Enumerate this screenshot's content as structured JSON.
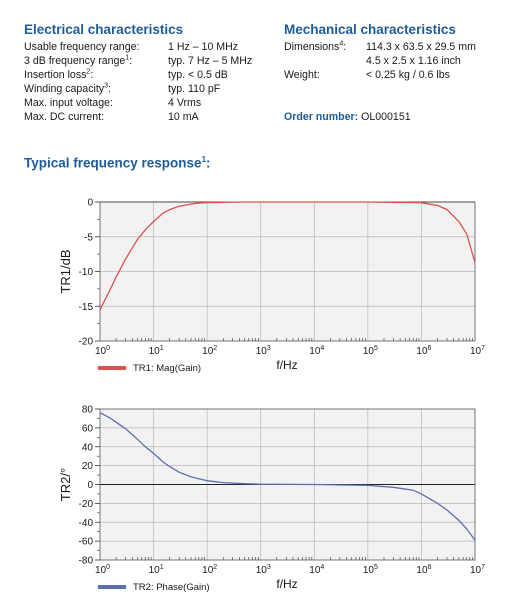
{
  "electrical": {
    "title": "Electrical characteristics",
    "rows": [
      {
        "label": "Usable frequency range:",
        "sup": "",
        "value": "1 Hz – 10 MHz"
      },
      {
        "label": "3 dB frequency range",
        "sup": "1",
        "value": "typ. 7 Hz – 5 MHz"
      },
      {
        "label": "Insertion loss",
        "sup": "2",
        "value": "typ. < 0.5 dB"
      },
      {
        "label": "Winding capacity",
        "sup": "3",
        "value": "typ. 110 pF"
      },
      {
        "label": "Max. input voltage:",
        "sup": "",
        "value": "4 Vrms"
      },
      {
        "label": "Max. DC current:",
        "sup": "",
        "value": "10 mA"
      }
    ]
  },
  "mechanical": {
    "title": "Mechanical characteristics",
    "dimensions_label": "Dimensions",
    "dimensions_sup": "4",
    "dimensions_mm": "114.3 x 63.5 x 29.5 mm",
    "dimensions_inch": "4.5 x 2.5 x 1.16 inch",
    "weight_label": "Weight:",
    "weight_value": "< 0.25 kg / 0.6 lbs"
  },
  "order": {
    "label": "Order number:",
    "value": "OL000151"
  },
  "response_title": "Typical frequency response",
  "response_title_sup": "1",
  "colors": {
    "title_blue": "#1f5c99",
    "mag_trace": "#d9534f",
    "phase_trace": "#5b6fb0",
    "plot_bg": "#f2f2f2",
    "grid": "#b8b8b8"
  },
  "chart_data": [
    {
      "type": "line",
      "xscale": "log",
      "xlim": [
        1,
        10000000
      ],
      "ylim": [
        -20,
        0
      ],
      "xlabel": "f/Hz",
      "ylabel": "TR1/dB",
      "x_ticks": [
        "0",
        "1",
        "2",
        "3",
        "4",
        "5",
        "6",
        "7"
      ],
      "y_ticks": [
        "0",
        "-5",
        "-10",
        "-15",
        "-20"
      ],
      "legend": "TR1: Mag(Gain)",
      "series": [
        {
          "name": "TR1: Mag(Gain)",
          "x": [
            1,
            1.5,
            2,
            3,
            5,
            7,
            10,
            15,
            20,
            30,
            50,
            70,
            100,
            200,
            500,
            1000,
            10000,
            100000,
            1000000,
            2000000,
            3000000,
            5000000,
            7000000,
            10000000
          ],
          "y": [
            -15.5,
            -12.8,
            -10.8,
            -8.2,
            -5.4,
            -4.0,
            -2.8,
            -1.6,
            -1.1,
            -0.6,
            -0.3,
            -0.15,
            -0.1,
            -0.05,
            0,
            0,
            0,
            0,
            -0.1,
            -0.5,
            -1.1,
            -2.8,
            -4.6,
            -8.7
          ]
        }
      ]
    },
    {
      "type": "line",
      "xscale": "log",
      "xlim": [
        1,
        10000000
      ],
      "ylim": [
        -80,
        80
      ],
      "xlabel": "f/Hz",
      "ylabel": "TR2/°",
      "x_ticks": [
        "0",
        "1",
        "2",
        "3",
        "4",
        "5",
        "6",
        "7"
      ],
      "y_ticks": [
        "80",
        "60",
        "40",
        "20",
        "0",
        "-20",
        "-40",
        "-60",
        "-80"
      ],
      "legend": "TR2: Phase(Gain)",
      "series": [
        {
          "name": "TR2: Phase(Gain)",
          "x": [
            1,
            1.5,
            2,
            3,
            5,
            7,
            10,
            15,
            20,
            30,
            50,
            70,
            100,
            200,
            500,
            1000,
            10000,
            100000,
            300000,
            700000,
            1000000,
            2000000,
            3000000,
            5000000,
            7000000,
            10000000
          ],
          "y": [
            76,
            71,
            66,
            59,
            48,
            40,
            33,
            24,
            19,
            13,
            8,
            6,
            4,
            2,
            0.8,
            0.3,
            0,
            -1,
            -3,
            -6,
            -10,
            -20,
            -27,
            -38,
            -47,
            -59
          ]
        }
      ]
    }
  ]
}
